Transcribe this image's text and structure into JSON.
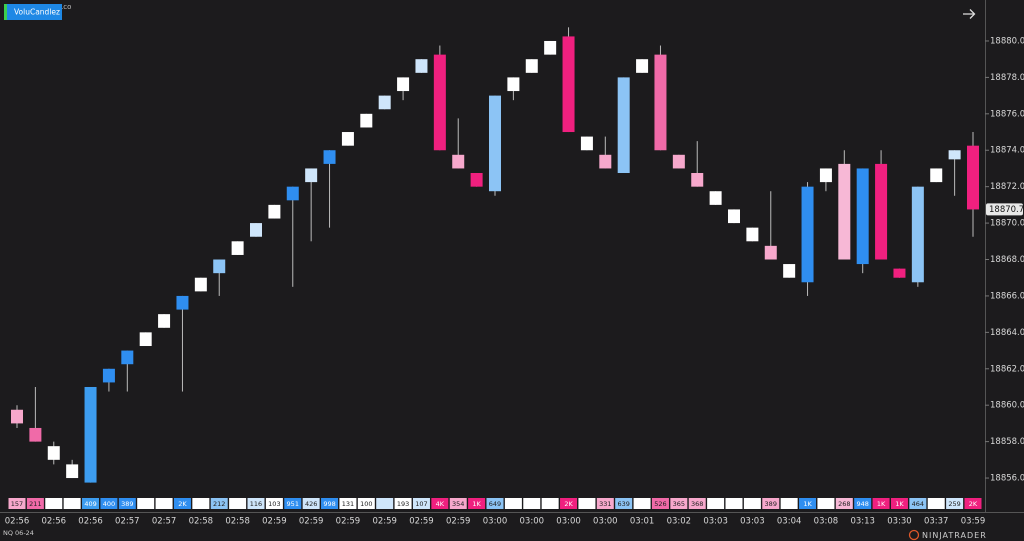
{
  "chart_data": {
    "type": "candlestick",
    "indicator": "VoluCandlez",
    "watermark": "Za.co",
    "instrument": "NQ 06-24",
    "logo": "NINJATRADER",
    "categories": [
      "02:56",
      null,
      "02:56",
      null,
      "02:56",
      null,
      "02:57",
      null,
      "02:57",
      null,
      "02:58",
      null,
      "02:58",
      null,
      "02:59",
      null,
      "02:59",
      null,
      "02:59",
      null,
      "02:59",
      null,
      "02:59",
      null,
      "02:59",
      null,
      "03:00",
      null,
      "03:00",
      null,
      "03:00",
      null,
      "03:00",
      null,
      "03:01",
      null,
      "03:02",
      null,
      "03:03",
      null,
      "03:03",
      null,
      "03:04",
      null,
      "03:08",
      null,
      "03:13",
      null,
      "03:30",
      null,
      "03:37",
      null,
      "03:59"
    ],
    "open": [
      18859.75,
      18858.75,
      18857.75,
      18856.75,
      18855.75,
      18861.25,
      18862.25,
      18863.25,
      18864.25,
      18865.25,
      18866.25,
      18867.25,
      18868.25,
      18869.25,
      18870.25,
      18871.25,
      18872.25,
      18873.25,
      18874.25,
      18875.25,
      18876.25,
      18877.25,
      18878.25,
      18879.25,
      18873.75,
      18872.75,
      18871.75,
      18877.25,
      18878.25,
      18879.25,
      18880.25,
      18874.75,
      18873.75,
      18872.75,
      18878.25,
      18879.25,
      18873.75,
      18872.75,
      18871.75,
      18870.75,
      18869.75,
      18868.75,
      18867.75,
      18866.75,
      18872.25,
      18873.25,
      18867.75,
      18873.25,
      18867.5,
      18866.75,
      18872.25,
      18873.5,
      18874.25
    ],
    "high": [
      18860,
      18861,
      18858,
      18857,
      18861,
      18862,
      18863,
      18864,
      18865,
      18866,
      18867,
      18868,
      18869,
      18870,
      18871,
      18872,
      18873,
      18874,
      18875,
      18876,
      18877,
      18878,
      18879,
      18879.75,
      18875.75,
      18872.75,
      18877,
      18878,
      18879,
      18880,
      18880.75,
      18874.75,
      18874.75,
      18878,
      18879,
      18879.75,
      18873.75,
      18874.5,
      18871.75,
      18870.75,
      18869.75,
      18871.75,
      18867.75,
      18872.25,
      18873,
      18874,
      18873,
      18874,
      18867.5,
      18872,
      18873,
      18874,
      18875
    ],
    "low": [
      18858.75,
      18858,
      18856.75,
      18856,
      18855.75,
      18860.75,
      18860.75,
      18863.25,
      18864.25,
      18860.75,
      18866.25,
      18866,
      18868.25,
      18869.25,
      18870.25,
      18866.5,
      18869,
      18869.75,
      18874.25,
      18875.25,
      18876.25,
      18876.75,
      18878.25,
      18874,
      18873,
      18872,
      18871.5,
      18876.75,
      18878.25,
      18879.25,
      18875,
      18874,
      18873,
      18872.75,
      18878.25,
      18874,
      18873,
      18872,
      18871,
      18870,
      18869,
      18868,
      18867,
      18866,
      18871.75,
      18868,
      18867.25,
      18868,
      18867,
      18866.5,
      18872.25,
      18871.5,
      18869.25
    ],
    "close": [
      18859,
      18858,
      18857,
      18856,
      18861,
      18862,
      18863,
      18864,
      18865,
      18866,
      18867,
      18868,
      18869,
      18870,
      18871,
      18872,
      18873,
      18874,
      18875,
      18876,
      18877,
      18878,
      18879,
      18874,
      18873,
      18872,
      18877,
      18878,
      18879,
      18880,
      18875,
      18874,
      18873,
      18878,
      18879,
      18874,
      18873,
      18872,
      18871,
      18870,
      18869,
      18868,
      18867,
      18872,
      18873,
      18868,
      18873,
      18868,
      18867,
      18872,
      18873,
      18874,
      18870.75
    ],
    "colors": [
      "#f7a8cc",
      "#f06aa8",
      "#ffffff",
      "#ffffff",
      "#3d9df0",
      "#2f8ef0",
      "#2f8ef0",
      "#ffffff",
      "#ffffff",
      "#2f8ef0",
      "#ffffff",
      "#8cc4f5",
      "#ffffff",
      "#cfe6fb",
      "#ffffff",
      "#2f8ef0",
      "#cfe6fb",
      "#2f8ef0",
      "#ffffff",
      "#ffffff",
      "#cfe6fb",
      "#ffffff",
      "#cfe6fb",
      "#f0207f",
      "#f7a8cc",
      "#f0207f",
      "#8cc4f5",
      "#ffffff",
      "#ffffff",
      "#ffffff",
      "#f0207f",
      "#ffffff",
      "#f7a8cc",
      "#8cc4f5",
      "#ffffff",
      "#f06aa8",
      "#f7a8cc",
      "#f7a8cc",
      "#ffffff",
      "#ffffff",
      "#ffffff",
      "#f7a8cc",
      "#ffffff",
      "#2f8ef0",
      "#ffffff",
      "#f7b8d6",
      "#2f8ef0",
      "#f0207f",
      "#f0207f",
      "#8cc4f5",
      "#ffffff",
      "#cfe6fb",
      "#f0207f"
    ],
    "volume_labels": [
      "157",
      "211",
      null,
      null,
      "409",
      "400",
      "389",
      null,
      null,
      "2K",
      null,
      "212",
      null,
      "116",
      "103",
      "951",
      "426",
      "998",
      "131",
      "100",
      null,
      "193",
      "107",
      "4K",
      "354",
      "1K",
      "649",
      null,
      null,
      null,
      "2K",
      null,
      "331",
      "639",
      null,
      "526",
      "365",
      "368",
      null,
      null,
      null,
      "389",
      null,
      "1K",
      null,
      "268",
      "948",
      "1K",
      "1K",
      "464",
      null,
      "259",
      "2K"
    ],
    "ylim": [
      18855.25,
      18882.25
    ],
    "yticks": [
      {
        "value": 18856,
        "label": "18856.00"
      },
      {
        "value": 18858,
        "label": "18858.00"
      },
      {
        "value": 18860,
        "label": "18860.00"
      },
      {
        "value": 18862,
        "label": "18862.00"
      },
      {
        "value": 18864,
        "label": "18864.00"
      },
      {
        "value": 18866,
        "label": "18866.00"
      },
      {
        "value": 18868,
        "label": "18868.00"
      },
      {
        "value": 18870,
        "label": "18870.00"
      },
      {
        "value": 18872,
        "label": "18872.00"
      },
      {
        "value": 18874,
        "label": "18874.00"
      },
      {
        "value": 18876,
        "label": "18876.00"
      },
      {
        "value": 18878,
        "label": "18878.00"
      },
      {
        "value": 18880,
        "label": "18880.00"
      }
    ],
    "last_price": 18870.75
  }
}
